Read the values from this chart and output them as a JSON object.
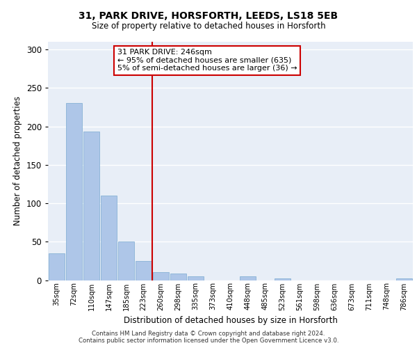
{
  "title1": "31, PARK DRIVE, HORSFORTH, LEEDS, LS18 5EB",
  "title2": "Size of property relative to detached houses in Horsforth",
  "xlabel": "Distribution of detached houses by size in Horsforth",
  "ylabel": "Number of detached properties",
  "categories": [
    "35sqm",
    "72sqm",
    "110sqm",
    "147sqm",
    "185sqm",
    "223sqm",
    "260sqm",
    "298sqm",
    "335sqm",
    "373sqm",
    "410sqm",
    "448sqm",
    "485sqm",
    "523sqm",
    "561sqm",
    "598sqm",
    "636sqm",
    "673sqm",
    "711sqm",
    "748sqm",
    "786sqm"
  ],
  "values": [
    35,
    230,
    193,
    110,
    50,
    25,
    10,
    9,
    5,
    0,
    0,
    5,
    0,
    2,
    0,
    0,
    0,
    0,
    0,
    0,
    2
  ],
  "bar_color": "#aec6e8",
  "bar_edge_color": "#7aaad0",
  "vline_color": "#cc0000",
  "annotation_text": "31 PARK DRIVE: 246sqm\n← 95% of detached houses are smaller (635)\n5% of semi-detached houses are larger (36) →",
  "annotation_box_color": "#ffffff",
  "annotation_box_edge": "#cc0000",
  "ylim": [
    0,
    310
  ],
  "yticks": [
    0,
    50,
    100,
    150,
    200,
    250,
    300
  ],
  "bg_color": "#e8eef7",
  "grid_color": "#ffffff",
  "footer": "Contains HM Land Registry data © Crown copyright and database right 2024.\nContains public sector information licensed under the Open Government Licence v3.0."
}
